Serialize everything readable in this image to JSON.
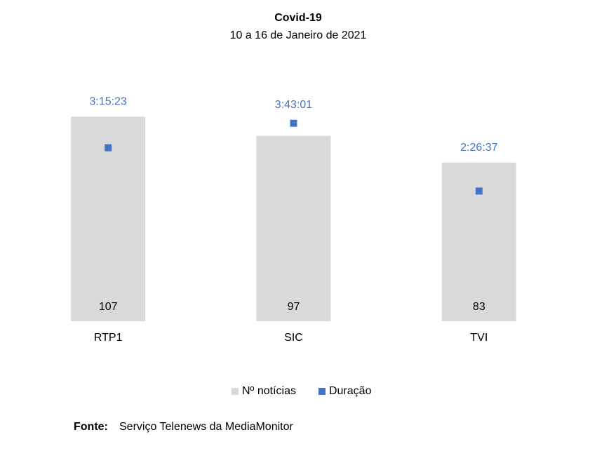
{
  "chart_data": {
    "type": "combo",
    "title": "Covid-19",
    "subtitle": "10 a 16 de Janeiro de 2021",
    "categories": [
      "RTP1",
      "SIC",
      "TVI"
    ],
    "series": [
      {
        "name": "Nº notícias",
        "type": "bar",
        "color": "#d9d9d9",
        "values": [
          107,
          97,
          83
        ]
      },
      {
        "name": "Duração",
        "type": "scatter",
        "axis": "y2",
        "color": "#4472c4",
        "values": [
          11723,
          13381,
          8797
        ],
        "value_labels": [
          "3:15:23",
          "3:43:01",
          "2:26:37"
        ]
      }
    ],
    "ylim": [
      0,
      120
    ],
    "y2lim": [
      0,
      15500
    ],
    "legend": "bottom",
    "source_label": "Fonte:",
    "source": "Serviço Telenews da MediaMonitor"
  }
}
